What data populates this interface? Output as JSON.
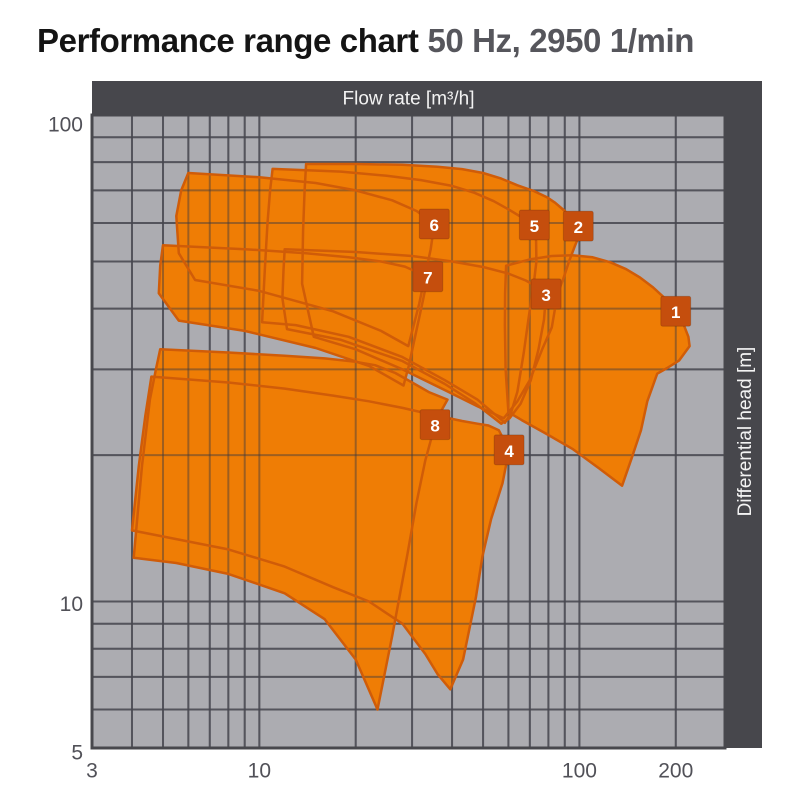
{
  "title": {
    "main": "Performance range chart",
    "suffix": "50 Hz, 2950 1/min"
  },
  "colors": {
    "page_bg": "#ffffff",
    "plot_bg": "#acacb1",
    "grid_base": "#6a6a71",
    "grid_overlay": "rgba(58,58,66,0.45)",
    "plot_border": "#48484d",
    "bar_bg": "#47474c",
    "bar_text": "#f3f3f3",
    "envelope_fill": "#ef7d05",
    "envelope_stroke": "#d05c08",
    "badge_fill": "#c54e0d",
    "badge_border": "rgba(0,0,0,0.15)",
    "badge_text": "#ffffff",
    "tick_text": "#515158",
    "title_main": "#141414",
    "title_suffix": "#56565c"
  },
  "chart_data": {
    "type": "area",
    "title": "Performance range chart 50 Hz, 2950 1/min",
    "x_axis": {
      "label": "Flow rate [m³/h]",
      "scale": "log",
      "unit": "m³/h",
      "range": [
        3,
        285
      ],
      "ticks": [
        {
          "value": 3,
          "label": "3"
        },
        {
          "value": 10,
          "label": "10"
        },
        {
          "value": 100,
          "label": "100"
        },
        {
          "value": 200,
          "label": "200"
        }
      ],
      "gridlines": [
        4,
        5,
        6,
        7,
        8,
        9,
        10,
        20,
        30,
        40,
        50,
        60,
        70,
        80,
        90,
        100,
        200
      ]
    },
    "y_axis": {
      "label": "Differential head [m]",
      "scale": "log",
      "unit": "m",
      "range": [
        5,
        100
      ],
      "ticks": [
        {
          "value": 100,
          "label": "100",
          "dy": 9
        },
        {
          "value": 10,
          "label": "10",
          "dy": 2
        },
        {
          "value": 5,
          "label": "5",
          "dy": 4
        }
      ],
      "gridlines": [
        6,
        7,
        8,
        9,
        10,
        20,
        30,
        40,
        50,
        60,
        70,
        80,
        90
      ]
    },
    "legend_position": "none",
    "grid": true,
    "draw_order": [
      2,
      5,
      3,
      6,
      7,
      8,
      4,
      1
    ],
    "series": [
      {
        "id": 1,
        "badge": "1",
        "badge_at": [
          200,
          39.5
        ],
        "envelope": [
          [
            59,
            49
          ],
          [
            70,
            50.5
          ],
          [
            82,
            51.3
          ],
          [
            95,
            51.5
          ],
          [
            110,
            51
          ],
          [
            125,
            49.8
          ],
          [
            140,
            48.2
          ],
          [
            155,
            46.3
          ],
          [
            170,
            44.2
          ],
          [
            185,
            42
          ],
          [
            200,
            39.5
          ],
          [
            211,
            37.3
          ],
          [
            219,
            35
          ],
          [
            221,
            33.5
          ],
          [
            205,
            31.3
          ],
          [
            188,
            30.2
          ],
          [
            175,
            29.4
          ],
          [
            163,
            25.8
          ],
          [
            155.7,
            22.5
          ],
          [
            146,
            19.8
          ],
          [
            135.9,
            17.3
          ],
          [
            115,
            18.8
          ],
          [
            95,
            20.6
          ],
          [
            78,
            22.2
          ],
          [
            66,
            23.6
          ],
          [
            60,
            24.5
          ],
          [
            58.8,
            30
          ],
          [
            58.5,
            37
          ],
          [
            58.6,
            43
          ]
        ]
      },
      {
        "id": 2,
        "badge": "2",
        "badge_at": [
          99.2,
          59.1
        ],
        "envelope": [
          [
            14,
            79.3
          ],
          [
            20,
            79.3
          ],
          [
            28,
            79
          ],
          [
            36,
            78.3
          ],
          [
            43,
            77.4
          ],
          [
            50,
            76
          ],
          [
            57,
            74
          ],
          [
            64,
            71.7
          ],
          [
            72,
            69.8
          ],
          [
            79,
            67.8
          ],
          [
            84,
            66
          ],
          [
            90,
            63.5
          ],
          [
            96,
            61
          ],
          [
            99.2,
            59.1
          ],
          [
            101,
            57.5
          ],
          [
            97,
            54
          ],
          [
            92.8,
            50
          ],
          [
            89,
            46
          ],
          [
            85.5,
            43
          ],
          [
            82,
            36.6
          ],
          [
            76.5,
            33
          ],
          [
            70,
            28.5
          ],
          [
            64,
            25.8
          ],
          [
            58,
            23.8
          ],
          [
            48,
            25.2
          ],
          [
            38,
            27.2
          ],
          [
            28,
            30
          ],
          [
            20,
            33
          ],
          [
            14.8,
            35
          ],
          [
            13.6,
            45
          ],
          [
            13.7,
            58
          ],
          [
            13.85,
            70
          ]
        ]
      },
      {
        "id": 3,
        "badge": "3",
        "badge_at": [
          78.7,
          42.9
        ],
        "envelope": [
          [
            12,
            53
          ],
          [
            20,
            52.3
          ],
          [
            30,
            51.3
          ],
          [
            40,
            50
          ],
          [
            50,
            48.7
          ],
          [
            60,
            47.2
          ],
          [
            68,
            45.7
          ],
          [
            74,
            44.3
          ],
          [
            78.7,
            42.9
          ],
          [
            77.5,
            38
          ],
          [
            74.5,
            33
          ],
          [
            70.5,
            28.5
          ],
          [
            65.5,
            25.5
          ],
          [
            60.5,
            23.8
          ],
          [
            57,
            23.2
          ],
          [
            47,
            25.6
          ],
          [
            38,
            28
          ],
          [
            28,
            31.2
          ],
          [
            18,
            34.5
          ],
          [
            12.2,
            36.3
          ],
          [
            11.8,
            42
          ],
          [
            11.9,
            48
          ]
        ]
      },
      {
        "id": 4,
        "badge": "4",
        "badge_at": [
          60.3,
          20.5
        ],
        "envelope": [
          [
            4.6,
            29
          ],
          [
            8,
            28.2
          ],
          [
            12,
            27.4
          ],
          [
            17,
            26.5
          ],
          [
            22,
            25.8
          ],
          [
            28,
            25
          ],
          [
            33,
            24.4
          ],
          [
            38,
            23.9
          ],
          [
            43,
            23.5
          ],
          [
            48,
            23.2
          ],
          [
            52,
            23
          ],
          [
            56,
            22.5
          ],
          [
            60.3,
            20.5
          ],
          [
            57.5,
            17.5
          ],
          [
            53,
            14.8
          ],
          [
            49.8,
            12.4
          ],
          [
            47.5,
            10.2
          ],
          [
            43.3,
            7.6
          ],
          [
            39.5,
            6.6
          ],
          [
            36,
            7.1
          ],
          [
            33,
            7.8
          ],
          [
            28,
            9
          ],
          [
            22,
            10
          ],
          [
            17,
            10.7
          ],
          [
            12,
            11.8
          ],
          [
            8,
            12.8
          ],
          [
            4.0,
            14
          ],
          [
            4.2,
            19
          ],
          [
            4.4,
            24
          ]
        ]
      },
      {
        "id": 5,
        "badge": "5",
        "badge_at": [
          72.3,
          59.4
        ],
        "envelope": [
          [
            11,
            77.5
          ],
          [
            18,
            76.5
          ],
          [
            25,
            75
          ],
          [
            32,
            73.5
          ],
          [
            40,
            71.5
          ],
          [
            47,
            69.2
          ],
          [
            54,
            66.5
          ],
          [
            60,
            64
          ],
          [
            65,
            62
          ],
          [
            69.5,
            60.9
          ],
          [
            72.3,
            59.4
          ],
          [
            73.2,
            55
          ],
          [
            73.4,
            50
          ],
          [
            72,
            45
          ],
          [
            69.5,
            38.5
          ],
          [
            67,
            32.5
          ],
          [
            64,
            27
          ],
          [
            61,
            24.3
          ],
          [
            58.5,
            23.3
          ],
          [
            48,
            26
          ],
          [
            38,
            28.5
          ],
          [
            28,
            31.8
          ],
          [
            19,
            35
          ],
          [
            13,
            37
          ],
          [
            10.2,
            37.5
          ],
          [
            10.4,
            48
          ],
          [
            10.6,
            60
          ],
          [
            10.8,
            70
          ]
        ]
      },
      {
        "id": 6,
        "badge": "6",
        "badge_at": [
          35.2,
          59.7
        ],
        "envelope": [
          [
            6,
            76
          ],
          [
            10,
            74.5
          ],
          [
            15,
            72.5
          ],
          [
            20,
            70
          ],
          [
            26,
            66.8
          ],
          [
            31,
            63.5
          ],
          [
            35.2,
            59.7
          ],
          [
            34.3,
            53
          ],
          [
            33,
            47
          ],
          [
            31.6,
            41
          ],
          [
            30.2,
            36.5
          ],
          [
            29.2,
            33.5
          ],
          [
            24,
            36
          ],
          [
            17,
            39.5
          ],
          [
            10,
            43.5
          ],
          [
            6.3,
            45.8
          ],
          [
            5.6,
            52
          ],
          [
            5.5,
            62
          ],
          [
            5.7,
            70
          ]
        ]
      },
      {
        "id": 7,
        "badge": "7",
        "badge_at": [
          33.6,
          46.5
        ],
        "envelope": [
          [
            5,
            54
          ],
          [
            9,
            53
          ],
          [
            14,
            52
          ],
          [
            19,
            51
          ],
          [
            24,
            50
          ],
          [
            28.5,
            48.8
          ],
          [
            33.6,
            46.5
          ],
          [
            32.3,
            41
          ],
          [
            30.8,
            35.5
          ],
          [
            29.3,
            30.5
          ],
          [
            28.2,
            27.8
          ],
          [
            22,
            30.5
          ],
          [
            15,
            33.2
          ],
          [
            9,
            36
          ],
          [
            5.6,
            37.8
          ],
          [
            4.85,
            43
          ],
          [
            4.9,
            49
          ]
        ]
      },
      {
        "id": 8,
        "badge": "8",
        "badge_at": [
          35.4,
          23.1
        ],
        "envelope": [
          [
            4.9,
            33
          ],
          [
            8,
            32.5
          ],
          [
            12,
            32
          ],
          [
            16,
            31.6
          ],
          [
            20,
            31.1
          ],
          [
            23,
            30.6
          ],
          [
            26.6,
            29.5
          ],
          [
            30,
            28.2
          ],
          [
            34,
            26.9
          ],
          [
            38.7,
            26
          ],
          [
            36.8,
            24.5
          ],
          [
            35.4,
            23.1
          ],
          [
            33,
            19.5
          ],
          [
            31,
            16
          ],
          [
            29,
            12.5
          ],
          [
            26,
            8.5
          ],
          [
            23.4,
            6
          ],
          [
            20,
            7.6
          ],
          [
            16,
            9.2
          ],
          [
            12,
            10.4
          ],
          [
            8,
            11.4
          ],
          [
            5.5,
            12
          ],
          [
            4.05,
            12.3
          ],
          [
            4.3,
            19
          ],
          [
            4.55,
            26
          ],
          [
            4.75,
            30
          ]
        ]
      }
    ]
  }
}
